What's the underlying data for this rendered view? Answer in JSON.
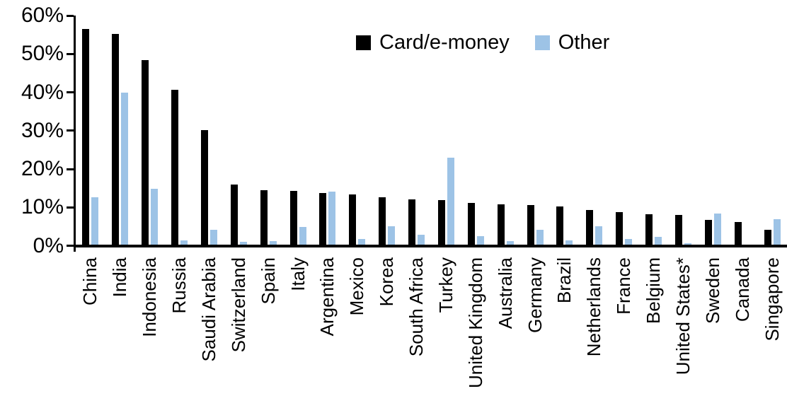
{
  "chart_data": {
    "type": "bar",
    "title": "",
    "xlabel": "",
    "ylabel": "",
    "ylim": [
      0,
      60
    ],
    "ytick_step": 10,
    "ytick_labels": [
      "0%",
      "10%",
      "20%",
      "30%",
      "40%",
      "50%",
      "60%"
    ],
    "grid": false,
    "legend_position": "top-center",
    "categories": [
      "China",
      "India",
      "Indonesia",
      "Russia",
      "Saudi Arabia",
      "Switzerland",
      "Spain",
      "Italy",
      "Argentina",
      "Mexico",
      "Korea",
      "South Africa",
      "Turkey",
      "United Kingdom",
      "Australia",
      "Germany",
      "Brazil",
      "Netherlands",
      "France",
      "Belgium",
      "United States*",
      "Sweden",
      "Canada",
      "Singapore"
    ],
    "series": [
      {
        "name": "Card/e-money",
        "color": "#000000",
        "values": [
          56.3,
          55.0,
          48.2,
          40.4,
          29.8,
          15.6,
          14.2,
          14.1,
          13.5,
          13.0,
          12.3,
          11.8,
          11.7,
          10.9,
          10.6,
          10.4,
          9.9,
          9.0,
          8.5,
          8.0,
          7.8,
          6.5,
          5.9,
          3.8
        ]
      },
      {
        "name": "Other",
        "color": "#9DC3E6",
        "values": [
          12.3,
          39.7,
          14.5,
          1.1,
          3.9,
          0.8,
          1.0,
          4.7,
          13.9,
          1.5,
          4.8,
          2.5,
          22.6,
          2.2,
          0.9,
          3.8,
          1.2,
          4.8,
          1.5,
          2.0,
          0.4,
          8.1,
          0,
          6.7
        ]
      }
    ]
  }
}
